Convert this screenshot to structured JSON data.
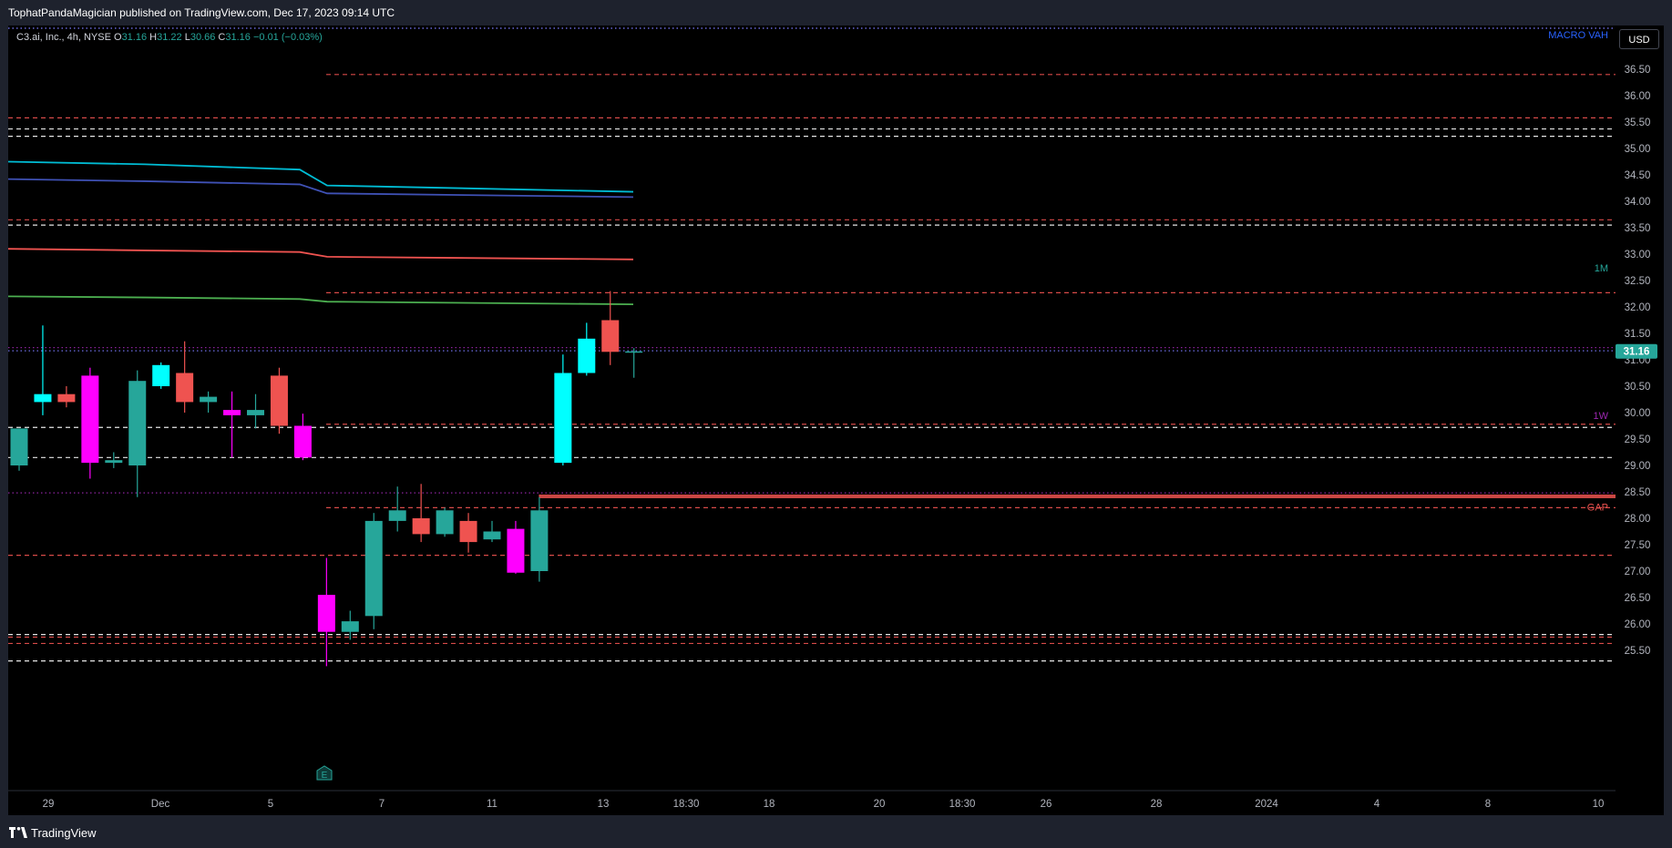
{
  "header": {
    "publisher": "TophatPandaMagician published on TradingView.com, Dec 17, 2023 09:14 UTC"
  },
  "legend": {
    "symbol": "C3.ai, Inc., 4h, NYSE",
    "o_label": "O",
    "o_value": "31.16",
    "h_label": "H",
    "h_value": "31.22",
    "l_label": "L",
    "l_value": "30.66",
    "c_label": "C",
    "c_value": "31.16",
    "change": "−0.01 (−0.03%)"
  },
  "controls": {
    "currency": "USD"
  },
  "footer": {
    "brand": "TradingView"
  },
  "colors": {
    "up": "#26a69a",
    "down": "#ef5350",
    "up_bright": "#00ffff",
    "down_bright": "#ff00ff",
    "background": "#000000",
    "frame": "#1e222d"
  },
  "chart_data": {
    "type": "candlestick",
    "y_axis": {
      "range": [
        25.2,
        36.85
      ],
      "ticks": [
        "36.50",
        "36.00",
        "35.50",
        "35.00",
        "34.50",
        "34.00",
        "33.50",
        "33.00",
        "32.50",
        "32.00",
        "31.50",
        "31.00",
        "30.50",
        "30.00",
        "29.50",
        "29.00",
        "28.50",
        "28.00",
        "27.50",
        "27.00",
        "26.50",
        "26.00",
        "25.50"
      ]
    },
    "x_axis": {
      "ticks": [
        "29",
        "Dec",
        "5",
        "7",
        "11",
        "13",
        "18:30",
        "18",
        "20",
        "18:30",
        "26",
        "28",
        "2024",
        "4",
        "8",
        "10"
      ]
    },
    "last_price": "31.16",
    "candles": [
      {
        "o": 29.0,
        "h": 29.7,
        "l": 28.9,
        "c": 29.7,
        "color": "up"
      },
      {
        "o": 30.2,
        "h": 31.65,
        "l": 29.95,
        "c": 30.35,
        "color": "up_bright"
      },
      {
        "o": 30.35,
        "h": 30.5,
        "l": 30.1,
        "c": 30.2,
        "color": "down"
      },
      {
        "o": 30.7,
        "h": 30.85,
        "l": 28.75,
        "c": 29.05,
        "color": "down_bright"
      },
      {
        "o": 29.05,
        "h": 29.25,
        "l": 28.95,
        "c": 29.1,
        "color": "up"
      },
      {
        "o": 29.0,
        "h": 30.8,
        "l": 28.4,
        "c": 30.6,
        "color": "up"
      },
      {
        "o": 30.5,
        "h": 30.95,
        "l": 30.45,
        "c": 30.9,
        "color": "up_bright"
      },
      {
        "o": 30.75,
        "h": 31.35,
        "l": 30.0,
        "c": 30.2,
        "color": "down"
      },
      {
        "o": 30.2,
        "h": 30.4,
        "l": 30.0,
        "c": 30.3,
        "color": "up"
      },
      {
        "o": 30.05,
        "h": 30.4,
        "l": 29.15,
        "c": 29.95,
        "color": "down_bright"
      },
      {
        "o": 29.95,
        "h": 30.35,
        "l": 29.7,
        "c": 30.05,
        "color": "up"
      },
      {
        "o": 30.7,
        "h": 30.85,
        "l": 29.6,
        "c": 29.75,
        "color": "down"
      },
      {
        "o": 29.75,
        "h": 29.98,
        "l": 29.1,
        "c": 29.15,
        "color": "down_bright"
      },
      {
        "o": 26.55,
        "h": 27.25,
        "l": 25.2,
        "c": 25.85,
        "color": "down_bright"
      },
      {
        "o": 25.85,
        "h": 26.25,
        "l": 25.7,
        "c": 26.05,
        "color": "up"
      },
      {
        "o": 26.15,
        "h": 28.1,
        "l": 25.9,
        "c": 27.95,
        "color": "up"
      },
      {
        "o": 27.95,
        "h": 28.6,
        "l": 27.75,
        "c": 28.15,
        "color": "up"
      },
      {
        "o": 28.0,
        "h": 28.65,
        "l": 27.55,
        "c": 27.7,
        "color": "down"
      },
      {
        "o": 27.7,
        "h": 28.2,
        "l": 27.65,
        "c": 28.15,
        "color": "up"
      },
      {
        "o": 27.95,
        "h": 28.1,
        "l": 27.35,
        "c": 27.55,
        "color": "down"
      },
      {
        "o": 27.6,
        "h": 27.95,
        "l": 27.55,
        "c": 27.75,
        "color": "up"
      },
      {
        "o": 27.8,
        "h": 27.95,
        "l": 26.95,
        "c": 26.97,
        "color": "down_bright"
      },
      {
        "o": 27.0,
        "h": 28.4,
        "l": 26.8,
        "c": 28.15,
        "color": "up"
      },
      {
        "o": 29.05,
        "h": 31.1,
        "l": 29.0,
        "c": 30.75,
        "color": "up_bright"
      },
      {
        "o": 30.75,
        "h": 31.7,
        "l": 30.7,
        "c": 31.4,
        "color": "up_bright"
      },
      {
        "o": 31.75,
        "h": 32.3,
        "l": 30.9,
        "c": 31.15,
        "color": "down"
      },
      {
        "o": 31.16,
        "h": 31.22,
        "l": 30.66,
        "c": 31.16,
        "color": "up"
      }
    ],
    "moving_averages": [
      {
        "color": "#00bcd4",
        "values": [
          34.75,
          34.7,
          34.6,
          34.3,
          34.18
        ]
      },
      {
        "color": "#3f51b5",
        "values": [
          34.42,
          34.38,
          34.32,
          34.15,
          34.08
        ]
      },
      {
        "color": "#ef5350",
        "values": [
          33.1,
          33.07,
          33.04,
          32.95,
          32.9
        ]
      },
      {
        "color": "#4caf50",
        "values": [
          32.2,
          32.18,
          32.15,
          32.1,
          32.05
        ]
      }
    ],
    "levels": [
      {
        "y": 36.4,
        "color": "#ef5350",
        "style": "dashed",
        "from": "mid"
      },
      {
        "y": 35.58,
        "color": "#ef5350",
        "style": "dashed",
        "from": "start"
      },
      {
        "y": 35.37,
        "color": "#ffffff",
        "style": "dashed",
        "from": "start"
      },
      {
        "y": 35.23,
        "color": "#ffffff",
        "style": "dashed",
        "from": "start"
      },
      {
        "y": 33.65,
        "color": "#ef5350",
        "style": "dashed",
        "from": "start"
      },
      {
        "y": 33.55,
        "color": "#ffffff",
        "style": "dashed",
        "from": "start"
      },
      {
        "y": 32.27,
        "color": "#ef5350",
        "style": "dashed",
        "from": "mid"
      },
      {
        "y": 31.23,
        "color": "#9c27b0",
        "style": "dotted",
        "from": "start"
      },
      {
        "y": 31.17,
        "color": "#7b7bff",
        "style": "dotted",
        "from": "start"
      },
      {
        "y": 29.78,
        "color": "#ef5350",
        "style": "dashed",
        "from": "mid"
      },
      {
        "y": 29.72,
        "color": "#ffffff",
        "style": "dashed",
        "from": "start"
      },
      {
        "y": 29.15,
        "color": "#ffffff",
        "style": "dashed",
        "from": "start"
      },
      {
        "y": 28.48,
        "color": "#9c27b0",
        "style": "dotted",
        "from": "start"
      },
      {
        "y": 28.2,
        "color": "#ef5350",
        "style": "dashed",
        "from": "mid"
      },
      {
        "y": 27.3,
        "color": "#ef5350",
        "style": "dashed",
        "from": "start"
      },
      {
        "y": 25.8,
        "color": "#ffffff",
        "style": "dashed",
        "from": "start"
      },
      {
        "y": 25.75,
        "color": "#ef5350",
        "style": "dashed",
        "from": "start"
      },
      {
        "y": 25.63,
        "color": "#ef5350",
        "style": "dashed",
        "from": "start"
      },
      {
        "y": 25.3,
        "color": "#ffffff",
        "style": "dashed",
        "from": "start"
      }
    ],
    "gap_zone": {
      "y1": 28.38,
      "y2": 28.45,
      "label": "GAP"
    },
    "labels": {
      "macro_vah": "MACRO VAH",
      "m1": "1M",
      "w1": "1W",
      "earnings": "E"
    }
  }
}
